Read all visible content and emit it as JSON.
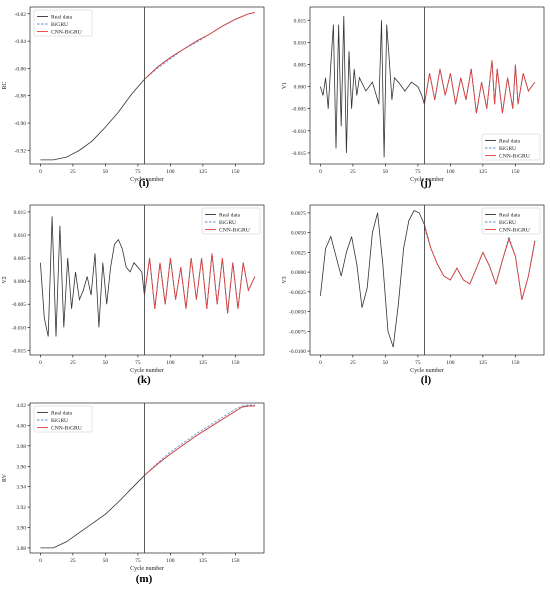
{
  "chart_data": [
    {
      "id": "i",
      "label": "(i)",
      "type": "line",
      "xlabel": "Cycle number",
      "ylabel": "RC",
      "xlim": [
        -8,
        172
      ],
      "ylim": [
        -0.93,
        -0.815
      ],
      "xticks": [
        0,
        25,
        50,
        75,
        100,
        125,
        150
      ],
      "yticks": [
        -0.92,
        -0.9,
        -0.88,
        -0.86,
        -0.84,
        -0.82
      ],
      "tick_decimals": 2,
      "split_x": 80,
      "legend_position": "upper-left",
      "legend": [
        "Real data",
        "BiGRU",
        "CNN-BiGRU"
      ],
      "series": [
        {
          "name": "Real data",
          "color": "#333333",
          "x": [
            0,
            10,
            20,
            30,
            40,
            50,
            60,
            70,
            80,
            90,
            100,
            110,
            120,
            130,
            140,
            150,
            160,
            165
          ],
          "y": [
            -0.927,
            -0.927,
            -0.925,
            -0.92,
            -0.913,
            -0.903,
            -0.892,
            -0.879,
            -0.868,
            -0.859,
            -0.852,
            -0.846,
            -0.84,
            -0.835,
            -0.829,
            -0.824,
            -0.82,
            -0.819
          ]
        },
        {
          "name": "BiGRU",
          "color": "#5b8fd6",
          "dashed": true,
          "x": [
            80,
            90,
            100,
            110,
            120,
            130,
            140,
            150,
            160,
            165
          ],
          "y": [
            -0.868,
            -0.86,
            -0.853,
            -0.846,
            -0.841,
            -0.835,
            -0.829,
            -0.824,
            -0.82,
            -0.819
          ]
        },
        {
          "name": "CNN-BiGRU",
          "color": "#e8413b",
          "x": [
            80,
            90,
            100,
            110,
            120,
            130,
            140,
            150,
            160,
            165
          ],
          "y": [
            -0.868,
            -0.859,
            -0.852,
            -0.846,
            -0.84,
            -0.835,
            -0.829,
            -0.824,
            -0.82,
            -0.819
          ]
        }
      ]
    },
    {
      "id": "j",
      "label": "(j)",
      "type": "line",
      "xlabel": "Cycle number",
      "ylabel": "V1",
      "xlim": [
        -8,
        172
      ],
      "ylim": [
        -0.0175,
        0.018
      ],
      "xticks": [
        0,
        25,
        50,
        75,
        100,
        125,
        150
      ],
      "yticks": [
        -0.015,
        -0.01,
        -0.005,
        0,
        0.005,
        0.01,
        0.015
      ],
      "tick_decimals": 3,
      "split_x": 80,
      "legend_position": "lower-right",
      "legend": [
        "Real data",
        "BiGRU",
        "CNN-BiGRU"
      ],
      "series": [
        {
          "name": "Real data",
          "color": "#333333",
          "x": [
            0,
            2,
            4,
            6,
            8,
            10,
            12,
            14,
            16,
            18,
            20,
            22,
            24,
            26,
            28,
            30,
            35,
            40,
            45,
            47,
            49,
            51,
            53,
            55,
            57,
            60,
            65,
            70,
            75,
            78,
            80,
            84,
            88,
            92,
            96,
            100,
            104,
            108,
            112,
            116,
            120,
            124,
            128,
            132,
            134,
            136,
            140,
            144,
            148,
            150,
            152,
            156,
            160,
            165
          ],
          "y": [
            0,
            -0.002,
            0.002,
            -0.005,
            0.005,
            0.014,
            -0.014,
            0.014,
            -0.009,
            0.016,
            -0.015,
            0.008,
            -0.005,
            0.004,
            -0.002,
            0.002,
            -0.001,
            0.001,
            -0.004,
            0.015,
            -0.016,
            0.014,
            0.006,
            -0.003,
            0.002,
            0.001,
            -0.001,
            0.001,
            0,
            -0.002,
            -0.004,
            0.003,
            -0.003,
            0.004,
            -0.002,
            0.003,
            -0.004,
            0.002,
            -0.003,
            0.004,
            -0.006,
            0.001,
            -0.005,
            0.006,
            -0.004,
            0.004,
            -0.006,
            0.002,
            -0.005,
            0.005,
            -0.004,
            0.003,
            -0.001,
            0.001
          ]
        },
        {
          "name": "BiGRU",
          "color": "#5b8fd6",
          "dashed": true,
          "x": [
            80,
            84,
            88,
            92,
            96,
            100,
            104,
            108,
            112,
            116,
            120,
            124,
            128,
            132,
            134,
            136,
            140,
            144,
            148,
            150,
            152,
            156,
            160,
            165
          ],
          "y": [
            -0.004,
            0.003,
            -0.003,
            0.004,
            -0.002,
            0.003,
            -0.004,
            0.002,
            -0.003,
            0.004,
            -0.006,
            0.001,
            -0.005,
            0.006,
            -0.004,
            0.004,
            -0.006,
            0.002,
            -0.005,
            0.005,
            -0.004,
            0.003,
            -0.001,
            0.001
          ]
        },
        {
          "name": "CNN-BiGRU",
          "color": "#e8413b",
          "x": [
            80,
            84,
            88,
            92,
            96,
            100,
            104,
            108,
            112,
            116,
            120,
            124,
            128,
            132,
            134,
            136,
            140,
            144,
            148,
            150,
            152,
            156,
            160,
            165
          ],
          "y": [
            -0.004,
            0.003,
            -0.003,
            0.004,
            -0.002,
            0.003,
            -0.004,
            0.002,
            -0.003,
            0.004,
            -0.006,
            0.001,
            -0.005,
            0.006,
            -0.004,
            0.004,
            -0.006,
            0.002,
            -0.005,
            0.005,
            -0.004,
            0.003,
            -0.001,
            0.001
          ]
        }
      ]
    },
    {
      "id": "k",
      "label": "(k)",
      "type": "line",
      "xlabel": "Cycle number",
      "ylabel": "V2",
      "xlim": [
        -8,
        172
      ],
      "ylim": [
        -0.016,
        0.0165
      ],
      "xticks": [
        0,
        25,
        50,
        75,
        100,
        125,
        150
      ],
      "yticks": [
        -0.015,
        -0.01,
        -0.005,
        0,
        0.005,
        0.01,
        0.015
      ],
      "tick_decimals": 3,
      "split_x": 80,
      "legend_position": "upper-right",
      "legend": [
        "Real data",
        "BiGRU",
        "CNN-BiGRU"
      ],
      "series": [
        {
          "name": "Real data",
          "color": "#333333",
          "x": [
            0,
            3,
            6,
            9,
            12,
            15,
            18,
            21,
            24,
            27,
            30,
            33,
            36,
            39,
            42,
            45,
            48,
            51,
            54,
            57,
            60,
            63,
            66,
            69,
            72,
            75,
            78,
            80,
            84,
            88,
            92,
            96,
            100,
            104,
            108,
            112,
            116,
            120,
            124,
            128,
            132,
            136,
            140,
            144,
            148,
            152,
            156,
            160,
            165
          ],
          "y": [
            0.004,
            -0.008,
            -0.012,
            0.014,
            -0.012,
            0.012,
            -0.01,
            0.005,
            -0.006,
            0.002,
            -0.004,
            -0.002,
            0.001,
            -0.003,
            0.006,
            -0.01,
            0.004,
            -0.005,
            0.003,
            0.008,
            0.009,
            0.007,
            0.003,
            0.002,
            0.004,
            0.003,
            0.002,
            -0.003,
            0.005,
            -0.006,
            0.004,
            -0.005,
            0.005,
            -0.004,
            0.003,
            -0.006,
            0.005,
            -0.004,
            0.005,
            -0.006,
            0.006,
            -0.005,
            0.005,
            -0.007,
            0.004,
            -0.006,
            0.004,
            -0.002,
            0.001
          ]
        },
        {
          "name": "BiGRU",
          "color": "#5b8fd6",
          "dashed": true,
          "x": [
            80,
            84,
            88,
            92,
            96,
            100,
            104,
            108,
            112,
            116,
            120,
            124,
            128,
            132,
            136,
            140,
            144,
            148,
            152,
            156,
            160,
            165
          ],
          "y": [
            -0.003,
            0.005,
            -0.006,
            0.004,
            -0.005,
            0.005,
            -0.004,
            0.003,
            -0.006,
            0.005,
            -0.004,
            0.005,
            -0.006,
            0.006,
            -0.005,
            0.005,
            -0.007,
            0.004,
            -0.006,
            0.004,
            -0.002,
            0.001
          ]
        },
        {
          "name": "CNN-BiGRU",
          "color": "#e8413b",
          "x": [
            80,
            84,
            88,
            92,
            96,
            100,
            104,
            108,
            112,
            116,
            120,
            124,
            128,
            132,
            136,
            140,
            144,
            148,
            152,
            156,
            160,
            165
          ],
          "y": [
            -0.003,
            0.005,
            -0.006,
            0.004,
            -0.005,
            0.005,
            -0.004,
            0.003,
            -0.006,
            0.005,
            -0.004,
            0.005,
            -0.006,
            0.006,
            -0.005,
            0.005,
            -0.007,
            0.004,
            -0.006,
            0.004,
            -0.002,
            0.001
          ]
        }
      ]
    },
    {
      "id": "l",
      "label": "(l)",
      "type": "line",
      "xlabel": "Cycle number",
      "ylabel": "V3",
      "xlim": [
        -8,
        172
      ],
      "ylim": [
        -0.0105,
        0.0085
      ],
      "xticks": [
        0,
        25,
        50,
        75,
        100,
        125,
        150
      ],
      "yticks": [
        -0.01,
        -0.0075,
        -0.005,
        -0.0025,
        0,
        0.0025,
        0.005,
        0.0075
      ],
      "tick_decimals": 4,
      "split_x": 80,
      "legend_position": "upper-right",
      "legend": [
        "Real data",
        "BiGRU",
        "CNN-BiGRU"
      ],
      "series": [
        {
          "name": "Real data",
          "color": "#333333",
          "x": [
            0,
            4,
            8,
            12,
            16,
            20,
            24,
            28,
            32,
            36,
            40,
            44,
            48,
            52,
            56,
            60,
            64,
            68,
            72,
            76,
            80,
            85,
            90,
            95,
            100,
            105,
            110,
            115,
            120,
            125,
            130,
            135,
            140,
            145,
            150,
            155,
            160,
            165
          ],
          "y": [
            -0.003,
            0.003,
            0.0045,
            0.002,
            -0.0005,
            0.0025,
            0.0045,
            0.001,
            -0.0045,
            -0.002,
            0.005,
            0.0075,
            0.001,
            -0.0075,
            -0.0095,
            -0.004,
            0.003,
            0.0065,
            0.0078,
            0.0075,
            0.006,
            0.003,
            0.001,
            -0.0005,
            -0.001,
            0.0005,
            -0.001,
            -0.0015,
            0.0005,
            0.0025,
            0.0008,
            -0.0015,
            0.0015,
            0.0042,
            0.002,
            -0.0035,
            -0.0005,
            0.004
          ]
        },
        {
          "name": "BiGRU",
          "color": "#5b8fd6",
          "dashed": true,
          "x": [
            80,
            85,
            90,
            95,
            100,
            105,
            110,
            115,
            120,
            125,
            130,
            135,
            140,
            145,
            150,
            155,
            160,
            165
          ],
          "y": [
            0.0055,
            0.003,
            0.001,
            -0.0005,
            -0.001,
            0.0005,
            -0.001,
            -0.0015,
            0.0005,
            0.0025,
            0.0008,
            -0.0015,
            0.0015,
            0.0045,
            0.002,
            -0.0035,
            -0.0005,
            0.004
          ]
        },
        {
          "name": "CNN-BiGRU",
          "color": "#e8413b",
          "x": [
            80,
            85,
            90,
            95,
            100,
            105,
            110,
            115,
            120,
            125,
            130,
            135,
            140,
            145,
            150,
            155,
            160,
            165
          ],
          "y": [
            0.006,
            0.003,
            0.001,
            -0.0005,
            -0.001,
            0.0005,
            -0.001,
            -0.0015,
            0.0005,
            0.0025,
            0.0008,
            -0.0015,
            0.0015,
            0.0042,
            0.002,
            -0.0035,
            -0.0005,
            0.0038
          ]
        }
      ]
    },
    {
      "id": "m",
      "label": "(m)",
      "type": "line",
      "xlabel": "Cycle number",
      "ylabel": "RV",
      "xlim": [
        -8,
        172
      ],
      "ylim": [
        3.875,
        4.022
      ],
      "xticks": [
        0,
        25,
        50,
        75,
        100,
        125,
        150
      ],
      "yticks": [
        3.88,
        3.9,
        3.92,
        3.94,
        3.96,
        3.98,
        4.0,
        4.02
      ],
      "tick_decimals": 2,
      "split_x": 80,
      "legend_position": "upper-left",
      "legend": [
        "Real data",
        "BiGRU",
        "CNN-BiGRU"
      ],
      "series": [
        {
          "name": "Real data",
          "color": "#333333",
          "x": [
            0,
            10,
            20,
            30,
            40,
            50,
            60,
            70,
            80,
            90,
            100,
            110,
            120,
            130,
            140,
            150,
            155,
            160,
            165
          ],
          "y": [
            3.88,
            3.88,
            3.886,
            3.895,
            3.904,
            3.913,
            3.925,
            3.938,
            3.951,
            3.962,
            3.972,
            3.981,
            3.99,
            3.998,
            4.006,
            4.014,
            4.018,
            4.019,
            4.019
          ]
        },
        {
          "name": "BiGRU",
          "color": "#5b8fd6",
          "dashed": true,
          "x": [
            80,
            90,
            100,
            110,
            120,
            130,
            140,
            150,
            155,
            160,
            165
          ],
          "y": [
            3.951,
            3.963,
            3.974,
            3.983,
            3.992,
            4.0,
            4.008,
            4.016,
            4.019,
            4.02,
            4.02
          ]
        },
        {
          "name": "CNN-BiGRU",
          "color": "#e8413b",
          "x": [
            80,
            90,
            100,
            110,
            120,
            130,
            140,
            150,
            155,
            160,
            165
          ],
          "y": [
            3.951,
            3.962,
            3.972,
            3.981,
            3.99,
            3.998,
            4.006,
            4.014,
            4.018,
            4.019,
            4.019
          ]
        }
      ]
    }
  ]
}
